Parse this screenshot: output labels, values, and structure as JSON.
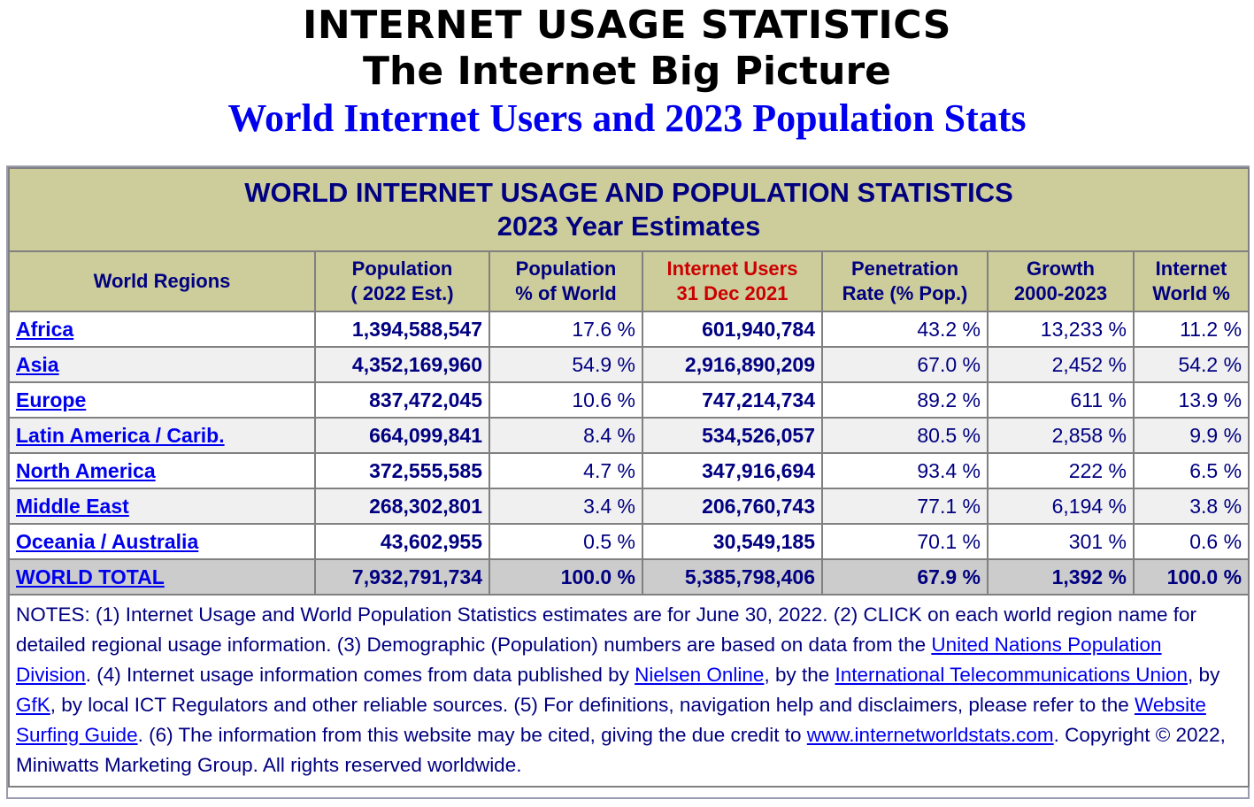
{
  "header": {
    "title1": "INTERNET USAGE STATISTICS",
    "title2": "The Internet Big Picture",
    "title3": "World Internet Users and 2023 Population Stats"
  },
  "table": {
    "caption_line1": "WORLD INTERNET USAGE AND POPULATION STATISTICS",
    "caption_line2": "2023 Year Estimates",
    "columns": [
      {
        "line1": "World Regions",
        "line2": ""
      },
      {
        "line1": "Population",
        "line2": "( 2022 Est.)"
      },
      {
        "line1": "Population",
        "line2": "% of World"
      },
      {
        "line1": "Internet Users",
        "line2": "31 Dec 2021"
      },
      {
        "line1": "Penetration",
        "line2": "Rate (% Pop.)"
      },
      {
        "line1": "Growth",
        "line2": "2000-2023"
      },
      {
        "line1": "Internet",
        "line2": "World %"
      }
    ],
    "rows": [
      {
        "region": "Africa",
        "population": "1,394,588,547",
        "pop_pct": "17.6 %",
        "users": "601,940,784",
        "penetration": "43.2 %",
        "growth": "13,233 %",
        "world_pct": "11.2 %"
      },
      {
        "region": "Asia",
        "population": "4,352,169,960",
        "pop_pct": "54.9 %",
        "users": "2,916,890,209",
        "penetration": "67.0 %",
        "growth": "2,452 %",
        "world_pct": "54.2 %"
      },
      {
        "region": "Europe",
        "population": "837,472,045",
        "pop_pct": "10.6 %",
        "users": "747,214,734",
        "penetration": "89.2 %",
        "growth": "611 %",
        "world_pct": "13.9 %"
      },
      {
        "region": "Latin America / Carib.",
        "population": "664,099,841",
        "pop_pct": "8.4 %",
        "users": "534,526,057",
        "penetration": "80.5 %",
        "growth": "2,858 %",
        "world_pct": "9.9 %"
      },
      {
        "region": "North America",
        "population": "372,555,585",
        "pop_pct": "4.7 %",
        "users": "347,916,694",
        "penetration": "93.4 %",
        "growth": "222 %",
        "world_pct": "6.5 %"
      },
      {
        "region": "Middle East",
        "population": "268,302,801",
        "pop_pct": "3.4 %",
        "users": "206,760,743",
        "penetration": "77.1 %",
        "growth": "6,194 %",
        "world_pct": "3.8 %"
      },
      {
        "region": "Oceania / Australia",
        "population": "43,602,955",
        "pop_pct": "0.5 %",
        "users": "30,549,185",
        "penetration": "70.1 %",
        "growth": "301 %",
        "world_pct": "0.6 %"
      }
    ],
    "total": {
      "region": "WORLD TOTAL",
      "population": "7,932,791,734",
      "pop_pct": "100.0 %",
      "users": "5,385,798,406",
      "penetration": "67.9 %",
      "growth": "1,392 %",
      "world_pct": "100.0 %"
    }
  },
  "notes": {
    "p1": "NOTES: (1) Internet Usage and World Population Statistics estimates are for June 30, 2022. (2) CLICK on each world region name for detailed regional usage information. (3) Demographic (Population) numbers are based on data from the ",
    "link_un": "United Nations Population Division",
    "p2": ". (4) Internet usage information comes from data published by ",
    "link_nielsen": "Nielsen Online",
    "p3": ", by the ",
    "link_itu": "International Telecommunications Union",
    "p4": ", by ",
    "link_gfk": "GfK",
    "p5": ", by local ICT Regulators and other reliable sources. (5) For definitions, navigation help and disclaimers, please refer to the ",
    "link_guide": "Website Surfing Guide",
    "p6": ". (6) The information from this website may be cited, giving the due credit to ",
    "link_site": "www.internetworldstats.com",
    "p7": ". Copyright © 2022, Miniwatts Marketing Group. All rights reserved worldwide."
  }
}
